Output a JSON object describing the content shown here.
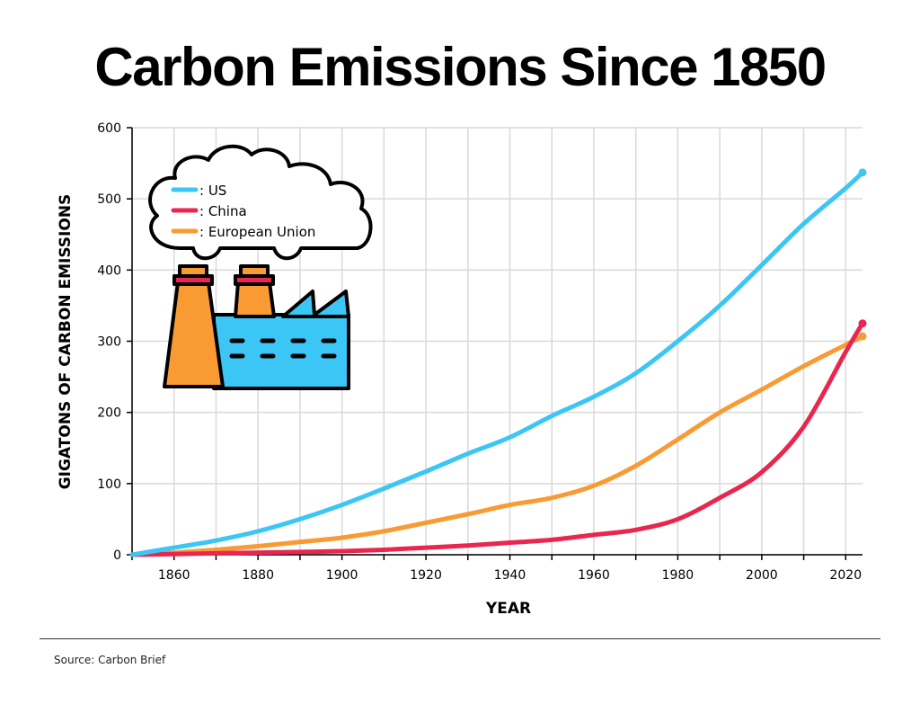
{
  "title": "Carbon Emissions Since 1850",
  "source": "Source: Carbon Brief",
  "chart_data": {
    "type": "line",
    "title": "Carbon Emissions Since 1850",
    "xlabel": "YEAR",
    "ylabel": "GIGATONS OF CARBON EMISSIONS",
    "xlim": [
      1850,
      2024
    ],
    "ylim": [
      0,
      600
    ],
    "xticks": [
      1860,
      1880,
      1900,
      1920,
      1940,
      1960,
      1980,
      2000,
      2020
    ],
    "yticks": [
      0,
      100,
      200,
      300,
      400,
      500,
      600
    ],
    "grid": true,
    "legend_placement": "top-left",
    "x": [
      1850,
      1860,
      1870,
      1880,
      1890,
      1900,
      1910,
      1920,
      1930,
      1940,
      1950,
      1960,
      1970,
      1980,
      1990,
      2000,
      2010,
      2020,
      2024
    ],
    "series": [
      {
        "name": "US",
        "color": "#3cc6f5",
        "values": [
          0,
          10,
          20,
          33,
          50,
          70,
          93,
          117,
          142,
          165,
          195,
          222,
          255,
          300,
          350,
          407,
          465,
          515,
          537
        ]
      },
      {
        "name": "China",
        "color": "#e8264f",
        "values": [
          0,
          1,
          2,
          3,
          4,
          5,
          7,
          10,
          13,
          17,
          21,
          28,
          35,
          50,
          80,
          116,
          180,
          285,
          325
        ]
      },
      {
        "name": "European Union",
        "color": "#fa9a33",
        "values": [
          0,
          3,
          7,
          12,
          18,
          24,
          33,
          45,
          57,
          70,
          80,
          97,
          125,
          162,
          200,
          232,
          265,
          295,
          307
        ]
      }
    ]
  },
  "legend": [
    {
      "label": ": US"
    },
    {
      "label": ": China"
    },
    {
      "label": ": European Union"
    }
  ]
}
